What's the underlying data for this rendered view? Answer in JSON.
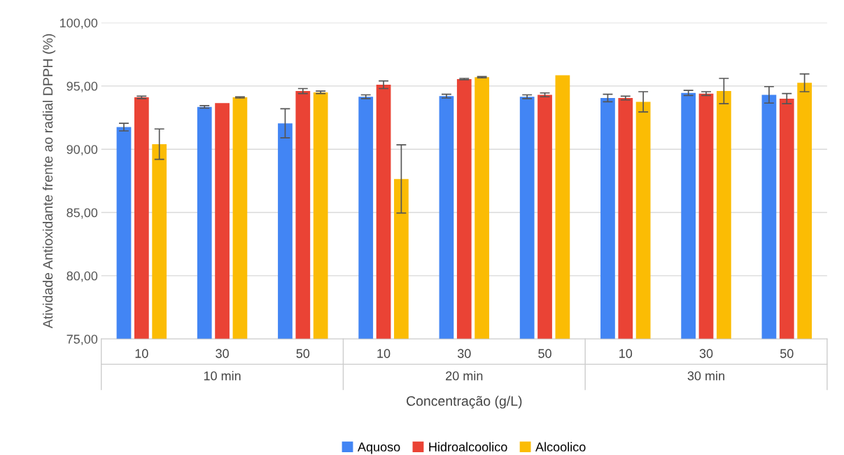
{
  "chart_data": {
    "type": "bar",
    "xlabel": "Concentração (g/L)",
    "ylabel": "Atividade Antioxidante frente ao radial DPPH (%)",
    "categories": [
      "10",
      "30",
      "50",
      "10",
      "30",
      "50",
      "10",
      "30",
      "50"
    ],
    "annotations": [
      "10 min",
      "20 min",
      "30 min"
    ],
    "series": [
      {
        "name": "Aquoso",
        "color": "#4285f4",
        "values": [
          91.75,
          93.35,
          92.05,
          94.15,
          94.2,
          94.15,
          94.05,
          94.45,
          94.3
        ],
        "errors": [
          0.3,
          0.1,
          1.15,
          0.15,
          0.15,
          0.15,
          0.3,
          0.2,
          0.65
        ]
      },
      {
        "name": "Hidroalcoolico",
        "color": "#ea4335",
        "values": [
          94.1,
          93.65,
          94.6,
          95.1,
          95.55,
          94.3,
          94.05,
          94.4,
          94.0
        ],
        "errors": [
          0.1,
          null,
          0.2,
          0.3,
          0.05,
          0.15,
          0.15,
          0.15,
          0.4
        ]
      },
      {
        "name": "Alcoolico",
        "color": "#fbbc04",
        "values": [
          90.4,
          94.1,
          94.5,
          87.65,
          95.7,
          95.85,
          93.75,
          94.6,
          95.25
        ],
        "errors": [
          1.2,
          0.05,
          0.1,
          2.7,
          0.05,
          null,
          0.8,
          1.0,
          0.7
        ]
      }
    ],
    "ylim": [
      75,
      100
    ],
    "yticks": [
      {
        "value": 75,
        "label": "75,00"
      },
      {
        "value": 80,
        "label": "80,00"
      },
      {
        "value": 85,
        "label": "85,00"
      },
      {
        "value": 90,
        "label": "90,00"
      },
      {
        "value": 95,
        "label": "95,00"
      },
      {
        "value": 100,
        "label": "100,00"
      }
    ],
    "grid": "y",
    "legend": "bottom"
  }
}
